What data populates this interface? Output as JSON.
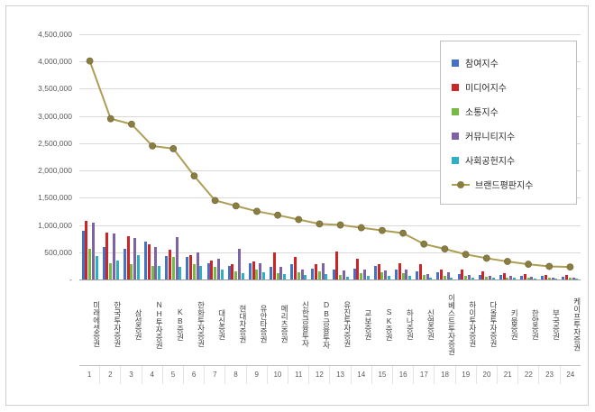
{
  "frame": {
    "background": "#FFFFFF",
    "border_color": "#CFCFCF"
  },
  "chart_data": {
    "type": "bar",
    "title": "",
    "xlabel": "",
    "ylabel": "",
    "ylim": [
      0,
      4500000
    ],
    "ytick_step": 500000,
    "ytick_labels": [
      "-",
      "500,000",
      "1,000,000",
      "1,500,000",
      "2,000,000",
      "2,500,000",
      "3,000,000",
      "3,500,000",
      "4,000,000",
      "4,500,000"
    ],
    "grid": true,
    "legend_position": "top-right",
    "categories": [
      "미래에셋증권",
      "한국투자증권",
      "삼성증권",
      "NH투자증권",
      "KB증권",
      "한화투자증권",
      "대신증권",
      "현대차증권",
      "유안타증권",
      "메리츠증권",
      "신한금융투자",
      "DB금융투자",
      "유진투자증권",
      "교보증권",
      "SK증권",
      "하나증권",
      "신영증권",
      "이베스트투자증권",
      "하이투자증권",
      "다올투자증권",
      "키움증권",
      "한양증권",
      "부국증권",
      "케이프투자증권"
    ],
    "rank_labels": [
      "1",
      "2",
      "3",
      "4",
      "5",
      "6",
      "7",
      "8",
      "9",
      "10",
      "11",
      "12",
      "13",
      "14",
      "15",
      "16",
      "17",
      "18",
      "19",
      "20",
      "21",
      "22",
      "23",
      "24"
    ],
    "series": [
      {
        "name": "참여지수",
        "color": "#4472C4",
        "values": [
          900000,
          600000,
          560000,
          700000,
          430000,
          420000,
          300000,
          250000,
          300000,
          230000,
          280000,
          200000,
          180000,
          200000,
          250000,
          180000,
          150000,
          130000,
          100000,
          90000,
          80000,
          70000,
          60000,
          55000
        ]
      },
      {
        "name": "미디어지수",
        "color": "#CC2427",
        "values": [
          1070000,
          860000,
          800000,
          650000,
          550000,
          450000,
          350000,
          280000,
          330000,
          500000,
          420000,
          280000,
          520000,
          380000,
          280000,
          300000,
          280000,
          180000,
          180000,
          150000,
          120000,
          100000,
          90000,
          85000
        ]
      },
      {
        "name": "소통지수",
        "color": "#76B943",
        "values": [
          560000,
          300000,
          280000,
          250000,
          420000,
          280000,
          230000,
          150000,
          180000,
          120000,
          130000,
          150000,
          90000,
          120000,
          130000,
          110000,
          80000,
          70000,
          60000,
          50000,
          40000,
          35000,
          30000,
          30000
        ]
      },
      {
        "name": "커뮤니티지수",
        "color": "#7D62A8",
        "values": [
          1050000,
          850000,
          760000,
          600000,
          770000,
          500000,
          380000,
          560000,
          300000,
          230000,
          180000,
          290000,
          160000,
          180000,
          170000,
          190000,
          100000,
          140000,
          90000,
          70000,
          60000,
          50000,
          40000,
          40000
        ]
      },
      {
        "name": "사회공헌지수",
        "color": "#2FAFC4",
        "values": [
          430000,
          340000,
          450000,
          250000,
          230000,
          250000,
          190000,
          110000,
          140000,
          100000,
          90000,
          100000,
          50000,
          70000,
          70000,
          70000,
          40000,
          40000,
          30000,
          30000,
          30000,
          25000,
          20000,
          20000
        ]
      }
    ],
    "line_series": {
      "name": "브랜드평판지수",
      "color": "#AD9D55",
      "marker_color": "#897D41",
      "values": [
        4010000,
        2950000,
        2850000,
        2450000,
        2400000,
        1900000,
        1450000,
        1350000,
        1250000,
        1180000,
        1100000,
        1020000,
        1000000,
        950000,
        900000,
        850000,
        650000,
        560000,
        460000,
        390000,
        330000,
        280000,
        240000,
        230000
      ]
    }
  }
}
